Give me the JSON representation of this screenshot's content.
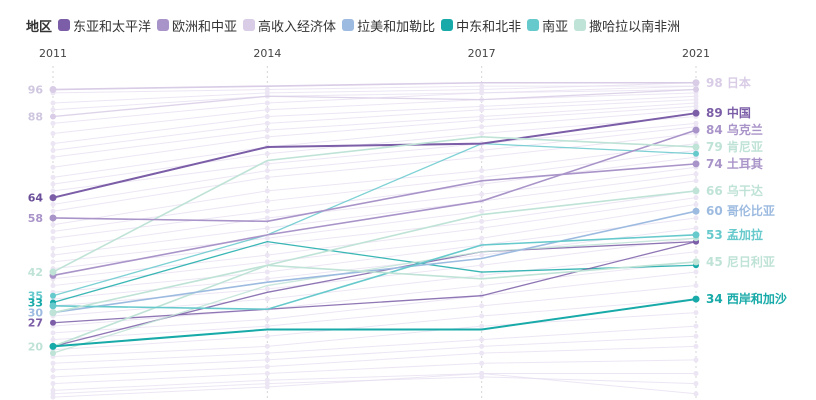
{
  "legend": {
    "title": "地区",
    "items": [
      {
        "label": "东亚和太平洋",
        "color": "#7b5ea7"
      },
      {
        "label": "欧洲和中亚",
        "color": "#a994c9"
      },
      {
        "label": "高收入经济体",
        "color": "#d8cce6"
      },
      {
        "label": "拉美和加勒比",
        "color": "#9dbbe0"
      },
      {
        "label": "中东和北非",
        "color": "#17aaa8"
      },
      {
        "label": "南亚",
        "color": "#66c9cc"
      },
      {
        "label": "撒哈拉以南非洲",
        "color": "#bfe3d6"
      }
    ]
  },
  "chart_data": {
    "type": "line",
    "x": [
      "2011",
      "2014",
      "2017",
      "2021"
    ],
    "ylim": [
      0,
      100
    ],
    "grid": "vertical",
    "left_labels": [
      {
        "value": 96,
        "text": "96",
        "color": "#cfc6df"
      },
      {
        "value": 88,
        "text": "88",
        "color": "#cfc6df"
      },
      {
        "value": 64,
        "text": "64",
        "color": "#6a4e99"
      },
      {
        "value": 58,
        "text": "58",
        "color": "#a994c9"
      },
      {
        "value": 42,
        "text": "42",
        "color": "#bfe3d6"
      },
      {
        "value": 35,
        "text": "35",
        "color": "#66c9cc"
      },
      {
        "value": 33,
        "text": "33",
        "color": "#17aaa8"
      },
      {
        "value": 30,
        "text": "30",
        "color": "#9dbbe0"
      },
      {
        "value": 27,
        "text": "27",
        "color": "#7b5ea7"
      },
      {
        "value": 20,
        "text": "20",
        "color": "#bfe3d6"
      }
    ],
    "series": [
      {
        "name": "日本",
        "group": "高收入经济体",
        "label": "98 日本",
        "color": "#d8cce6",
        "values": [
          96,
          97,
          98,
          98
        ]
      },
      {
        "name": "中国",
        "group": "东亚和太平洋",
        "label": "89 中国",
        "color": "#7b5ea7",
        "values": [
          64,
          79,
          80,
          89
        ]
      },
      {
        "name": "乌克兰",
        "group": "欧洲和中亚",
        "label": "84 乌克兰",
        "color": "#a994c9",
        "values": [
          41,
          53,
          63,
          84
        ]
      },
      {
        "name": "肯尼亚",
        "group": "撒哈拉以南非洲",
        "label": "79 肯尼亚",
        "color": "#bfe3d6",
        "values": [
          42,
          75,
          82,
          79
        ]
      },
      {
        "name": "土耳其",
        "group": "欧洲和中亚",
        "label": "74 土耳其",
        "color": "#a994c9",
        "values": [
          58,
          57,
          69,
          74
        ]
      },
      {
        "name": "乌干达",
        "group": "撒哈拉以南非洲",
        "label": "66 乌干达",
        "color": "#bfe3d6",
        "values": [
          20,
          44,
          59,
          66
        ]
      },
      {
        "name": "哥伦比亚",
        "group": "拉美和加勒比",
        "label": "60 哥伦比亚",
        "color": "#9dbbe0",
        "values": [
          30,
          39,
          46,
          60
        ]
      },
      {
        "name": "孟加拉",
        "group": "南亚",
        "label": "53 孟加拉",
        "color": "#66c9cc",
        "values": [
          32,
          31,
          50,
          53
        ]
      },
      {
        "name": "尼日利亚",
        "group": "撒哈拉以南非洲",
        "label": "45 尼日利亚",
        "color": "#bfe3d6",
        "values": [
          30,
          44,
          40,
          45
        ]
      },
      {
        "name": "西岸和加沙",
        "group": "中东和北非",
        "label": "34 西岸和加沙",
        "color": "#17aaa8",
        "values": [
          20,
          25,
          25,
          34
        ]
      }
    ],
    "extra_lines": [
      {
        "group": "南亚",
        "color": "#66c9cc",
        "values": [
          35,
          53,
          80,
          77
        ]
      },
      {
        "group": "中东和北非",
        "color": "#17aaa8",
        "values": [
          33,
          51,
          42,
          44
        ]
      },
      {
        "group": "东亚和太平洋",
        "color": "#7b5ea7",
        "values": [
          20,
          36,
          48,
          51
        ]
      },
      {
        "group": "东亚和太平洋",
        "color": "#7b5ea7",
        "values": [
          27,
          31,
          35,
          51
        ]
      },
      {
        "group": "高收入经济体",
        "color": "#d8cce6",
        "values": [
          88,
          94,
          93,
          96
        ]
      },
      {
        "group": "撒哈拉以南非洲",
        "color": "#bfe3d6",
        "values": [
          18,
          38,
          48,
          52
        ]
      }
    ],
    "faint_lines": [
      [
        95,
        96,
        97,
        97
      ],
      [
        92,
        95,
        96,
        98
      ],
      [
        90,
        94,
        95,
        97
      ],
      [
        86,
        92,
        95,
        96
      ],
      [
        83,
        90,
        93,
        95
      ],
      [
        80,
        88,
        91,
        94
      ],
      [
        78,
        86,
        90,
        93
      ],
      [
        76,
        84,
        88,
        92
      ],
      [
        73,
        82,
        87,
        91
      ],
      [
        70,
        79,
        85,
        90
      ],
      [
        68,
        77,
        83,
        88
      ],
      [
        66,
        74,
        80,
        86
      ],
      [
        62,
        72,
        78,
        85
      ],
      [
        60,
        70,
        76,
        83
      ],
      [
        56,
        66,
        72,
        80
      ],
      [
        54,
        63,
        70,
        78
      ],
      [
        52,
        60,
        68,
        76
      ],
      [
        49,
        58,
        65,
        73
      ],
      [
        47,
        55,
        63,
        71
      ],
      [
        45,
        52,
        60,
        69
      ],
      [
        43,
        50,
        57,
        66
      ],
      [
        40,
        47,
        55,
        64
      ],
      [
        38,
        45,
        52,
        62
      ],
      [
        36,
        42,
        50,
        58
      ],
      [
        34,
        40,
        47,
        55
      ],
      [
        32,
        37,
        44,
        52
      ],
      [
        29,
        34,
        41,
        48
      ],
      [
        26,
        31,
        38,
        45
      ],
      [
        24,
        28,
        35,
        42
      ],
      [
        22,
        26,
        32,
        38
      ],
      [
        19,
        23,
        29,
        34
      ],
      [
        17,
        20,
        26,
        30
      ],
      [
        15,
        18,
        22,
        26
      ],
      [
        13,
        16,
        20,
        23
      ],
      [
        11,
        14,
        18,
        20
      ],
      [
        9,
        12,
        15,
        16
      ],
      [
        7,
        10,
        12,
        12
      ],
      [
        6,
        9,
        11,
        9
      ],
      [
        5,
        8,
        12,
        6
      ]
    ]
  }
}
